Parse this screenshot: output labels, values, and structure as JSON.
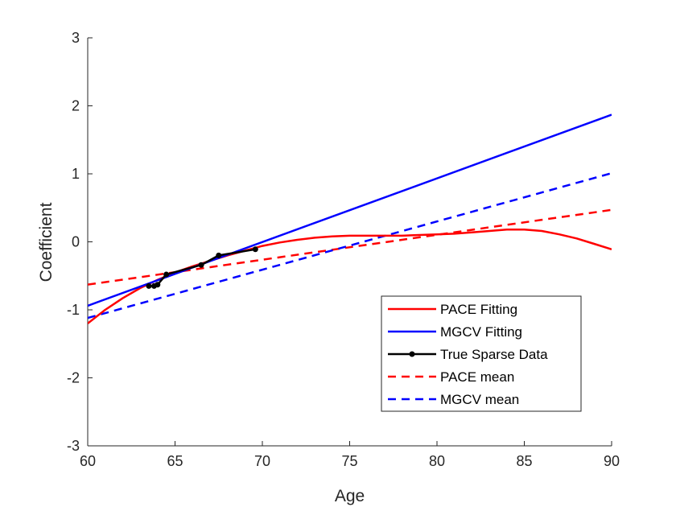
{
  "chart_data": {
    "type": "line",
    "xlabel": "Age",
    "ylabel": "Coefficient",
    "xlim": [
      60,
      90
    ],
    "ylim": [
      -3,
      3
    ],
    "xticks": [
      60,
      65,
      70,
      75,
      80,
      85,
      90
    ],
    "yticks": [
      -3,
      -2,
      -1,
      0,
      1,
      2,
      3
    ],
    "grid": false,
    "legend_position": "bottom-right",
    "series": [
      {
        "name": "PACE Fitting",
        "color": "#ff0000",
        "dash": "solid",
        "marker": false,
        "x": [
          60,
          61,
          62,
          63,
          64,
          65,
          66,
          67,
          68,
          69,
          70,
          71,
          72,
          73,
          74,
          75,
          76,
          77,
          78,
          79,
          80,
          81,
          82,
          83,
          84,
          85,
          86,
          87,
          88,
          89,
          90
        ],
        "y": [
          -1.2,
          -1.0,
          -0.83,
          -0.68,
          -0.56,
          -0.45,
          -0.36,
          -0.28,
          -0.2,
          -0.13,
          -0.06,
          -0.01,
          0.03,
          0.06,
          0.08,
          0.09,
          0.09,
          0.09,
          0.09,
          0.1,
          0.11,
          0.12,
          0.14,
          0.16,
          0.18,
          0.18,
          0.16,
          0.11,
          0.05,
          -0.03,
          -0.11
        ]
      },
      {
        "name": "MGCV Fitting",
        "color": "#0000ff",
        "dash": "solid",
        "marker": false,
        "x": [
          60,
          90
        ],
        "y": [
          -0.94,
          1.87
        ]
      },
      {
        "name": "True Sparse Data",
        "color": "#000000",
        "dash": "solid",
        "marker": true,
        "x": [
          63.5,
          63.8,
          64.0,
          64.5,
          66.5,
          67.5,
          69.6
        ],
        "y": [
          -0.65,
          -0.65,
          -0.63,
          -0.48,
          -0.34,
          -0.2,
          -0.11
        ]
      },
      {
        "name": "PACE mean",
        "color": "#ff0000",
        "dash": "dashed",
        "marker": false,
        "x": [
          60,
          90
        ],
        "y": [
          -0.63,
          0.47
        ]
      },
      {
        "name": "MGCV mean",
        "color": "#0000ff",
        "dash": "dashed",
        "marker": false,
        "x": [
          60,
          90
        ],
        "y": [
          -1.12,
          1.01
        ]
      }
    ]
  }
}
